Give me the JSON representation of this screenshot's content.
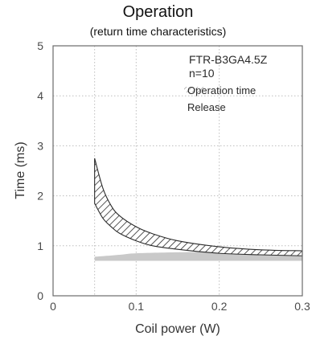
{
  "chart_data": {
    "type": "area",
    "title": "Operation",
    "subtitle": "(return time characteristics)",
    "xlabel": "Coil power (W)",
    "ylabel": "Time (ms)",
    "xlim": [
      0,
      0.3
    ],
    "ylim": [
      0,
      5
    ],
    "x_ticks": [
      "0",
      "0.1",
      "0.2",
      "0.3"
    ],
    "y_ticks": [
      "0",
      "1",
      "2",
      "3",
      "4",
      "5"
    ],
    "grid": true,
    "annotations": {
      "model": "FTR-B3GA4.5Z",
      "sample": "n=10"
    },
    "legend_position": "top-right",
    "series": [
      {
        "name": "Operation time",
        "style": "hatched band",
        "x": [
          0.05,
          0.06,
          0.07,
          0.08,
          0.1,
          0.12,
          0.15,
          0.2,
          0.25,
          0.3
        ],
        "lower": [
          1.85,
          1.55,
          1.38,
          1.25,
          1.1,
          1.0,
          0.93,
          0.85,
          0.82,
          0.8
        ],
        "upper": [
          2.75,
          2.15,
          1.8,
          1.6,
          1.38,
          1.24,
          1.1,
          0.98,
          0.92,
          0.9
        ]
      },
      {
        "name": "Release",
        "style": "solid gray band",
        "x": [
          0.05,
          0.08,
          0.1,
          0.15,
          0.2,
          0.3
        ],
        "lower": [
          0.7,
          0.7,
          0.7,
          0.7,
          0.7,
          0.7
        ],
        "upper": [
          0.78,
          0.82,
          0.85,
          0.87,
          0.88,
          0.88
        ]
      }
    ]
  },
  "colors": {
    "hatch": "#2b2b2b",
    "release_fill": "#c9c9c9",
    "legend_release": "#dcdcdc",
    "grid": "#bdbdbd",
    "frame": "#6a6a6a"
  }
}
